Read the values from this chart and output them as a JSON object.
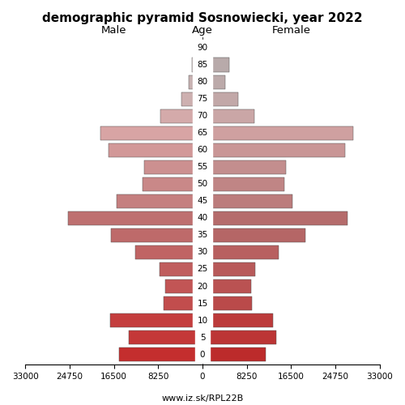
{
  "title": "demographic pyramid Sosnowiecki, year 2022",
  "ages": [
    90,
    85,
    80,
    75,
    70,
    65,
    60,
    55,
    50,
    45,
    40,
    35,
    30,
    25,
    20,
    15,
    10,
    5,
    0
  ],
  "male": [
    500,
    2000,
    2600,
    4000,
    7800,
    19000,
    17500,
    10800,
    11200,
    16000,
    25000,
    17000,
    12500,
    8000,
    7000,
    7200,
    17200,
    13800,
    15500
  ],
  "female": [
    1800,
    5000,
    4300,
    6600,
    9600,
    28000,
    26500,
    15500,
    15200,
    16700,
    27000,
    19200,
    14200,
    9800,
    9000,
    9200,
    13200,
    13800,
    11800
  ],
  "male_colors": [
    "#b3b3b3",
    "#c2b4b4",
    "#c8b2b2",
    "#cdb0b0",
    "#d4aaaa",
    "#d8a4a4",
    "#d29898",
    "#cc9090",
    "#c98888",
    "#c57f7f",
    "#be7070",
    "#be6a6a",
    "#c06464",
    "#c05e5e",
    "#c25555",
    "#c24d4d",
    "#c43e3e",
    "#c43838",
    "#c42e2e"
  ],
  "female_colors": [
    "#a8a8a8",
    "#b8aaaa",
    "#bcaaaa",
    "#c2a8a8",
    "#caa6a6",
    "#cfa0a0",
    "#c99696",
    "#c38e8e",
    "#c08585",
    "#bc7c7c",
    "#b56c6c",
    "#b56666",
    "#b86060",
    "#b85a5a",
    "#ba5252",
    "#ba4a4a",
    "#bc3b3b",
    "#bc3535",
    "#bc2b2b"
  ],
  "xlim": 33000,
  "bar_height": 0.82,
  "xlabel_left": "Male",
  "xlabel_right": "Female",
  "xlabel_center": "Age",
  "url": "www.iz.sk/RPL22B",
  "figsize": [
    5.0,
    5.0
  ],
  "dpi": 100,
  "xtick_positions": [
    -33000,
    -24750,
    -16500,
    -8250,
    0,
    8250,
    16500,
    24750,
    33000
  ],
  "xtick_labels": [
    "33000",
    "24750",
    "16500",
    "8250",
    "0",
    "8250",
    "16500",
    "24750",
    "33000"
  ]
}
